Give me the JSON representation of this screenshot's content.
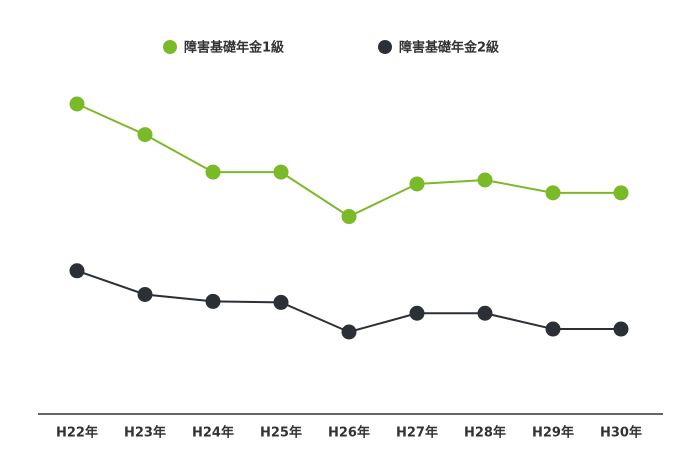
{
  "chart_data": {
    "type": "line",
    "categories": [
      "H22年",
      "H23年",
      "H24年",
      "H25年",
      "H26年",
      "H27年",
      "H28年",
      "H29年",
      "H30年"
    ],
    "series": [
      {
        "name": "障害基礎年金1級",
        "color": "#7aba28",
        "values": [
          296,
          265,
          227,
          227,
          182,
          215,
          219,
          206,
          206
        ]
      },
      {
        "name": "障害基礎年金2級",
        "color": "#2b3036",
        "values": [
          127,
          103,
          96,
          95,
          65,
          84,
          84,
          68,
          68
        ]
      }
    ],
    "legend": "top"
  }
}
